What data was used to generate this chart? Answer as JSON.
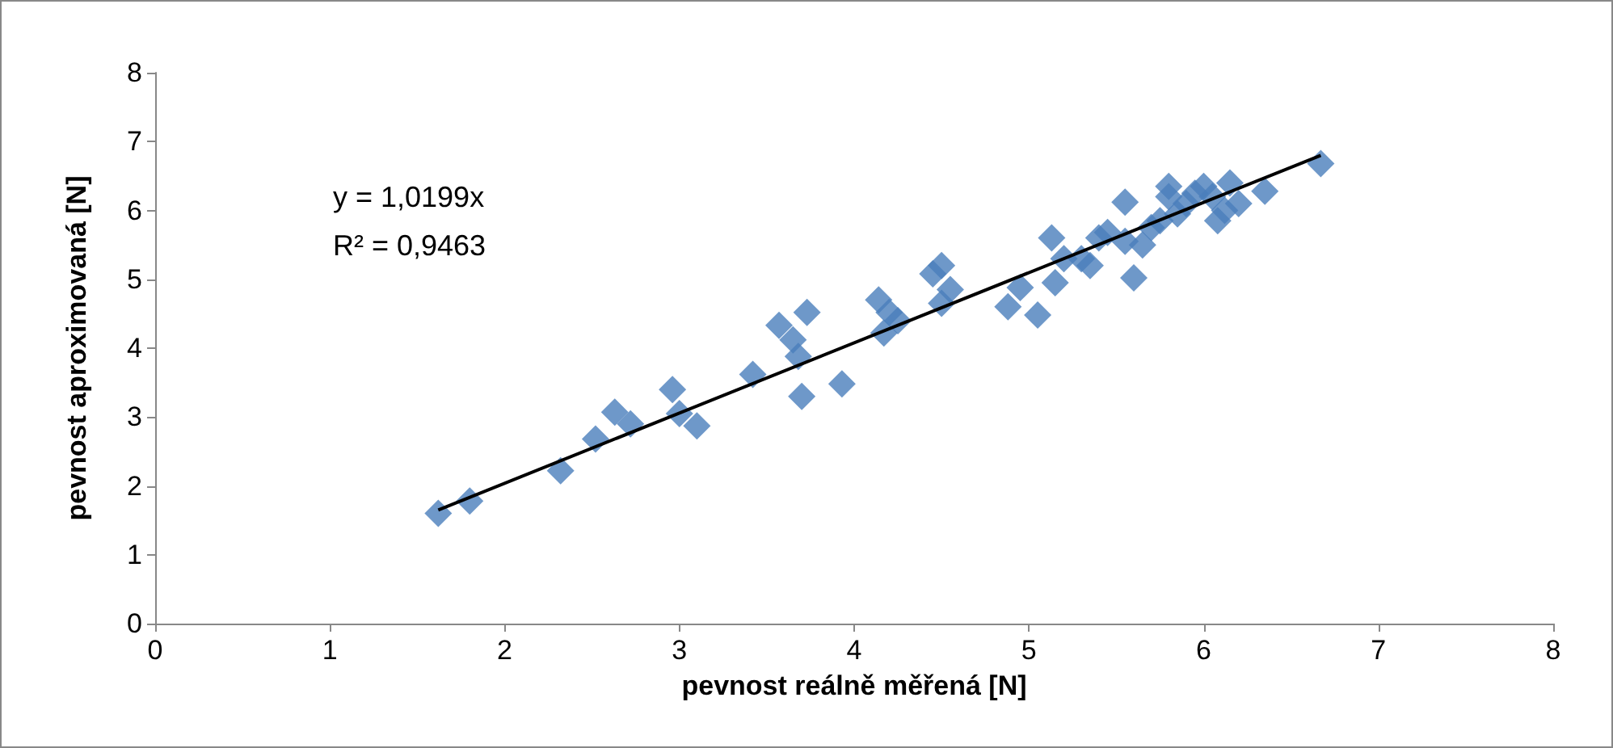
{
  "chart_data": {
    "type": "scatter",
    "xlabel": "pevnost reálně měřená [N]",
    "ylabel": "pevnost aproximovaná [N]",
    "annotations": [
      "y = 1,0199x",
      "R² = 0,9463"
    ],
    "xlim": [
      0,
      8
    ],
    "xticks": [
      0,
      1,
      2,
      3,
      4,
      5,
      6,
      7,
      8
    ],
    "ylim": [
      0,
      8
    ],
    "yticks": [
      0,
      1,
      2,
      3,
      4,
      5,
      6,
      7,
      8
    ],
    "grid": false,
    "marker": "diamond",
    "series": [
      {
        "color": "#4a7ebb",
        "x": [
          1.62,
          1.8,
          2.32,
          2.52,
          2.63,
          2.72,
          2.96,
          3.0,
          3.1,
          3.42,
          3.57,
          3.65,
          3.68,
          3.7,
          3.73,
          3.93,
          4.14,
          4.17,
          4.2,
          4.25,
          4.45,
          4.5,
          4.5,
          4.55,
          4.88,
          4.95,
          5.05,
          5.13,
          5.15,
          5.2,
          5.3,
          5.35,
          5.4,
          5.45,
          5.55,
          5.55,
          5.6,
          5.65,
          5.7,
          5.75,
          5.8,
          5.8,
          5.85,
          5.9,
          5.95,
          6.0,
          6.05,
          6.08,
          6.12,
          6.15,
          6.2,
          6.35,
          6.67
        ],
        "values": [
          1.6,
          1.78,
          2.22,
          2.68,
          3.07,
          2.9,
          3.4,
          3.05,
          2.87,
          3.62,
          4.33,
          4.12,
          3.88,
          3.3,
          4.52,
          3.48,
          4.7,
          4.22,
          4.52,
          4.4,
          5.08,
          5.2,
          4.65,
          4.85,
          4.6,
          4.88,
          4.48,
          5.6,
          4.95,
          5.3,
          5.3,
          5.2,
          5.6,
          5.68,
          6.12,
          5.55,
          5.02,
          5.5,
          5.75,
          5.85,
          6.35,
          6.2,
          5.95,
          6.1,
          6.25,
          6.35,
          6.2,
          5.85,
          6.0,
          6.4,
          6.1,
          6.28,
          6.68
        ]
      },
      {
        "type": "line",
        "color": "#000000",
        "marker": "none",
        "line_style": "solid",
        "x": [
          1.62,
          6.67
        ],
        "values": [
          1.65,
          6.8
        ]
      }
    ]
  }
}
